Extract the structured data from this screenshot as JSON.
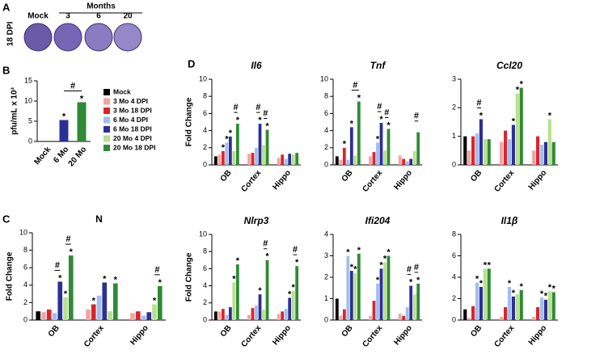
{
  "panel_a": {
    "panel": "A",
    "side_label": "18 DPI",
    "header": "Months",
    "columns": [
      "Mock",
      "3",
      "6",
      "20"
    ]
  },
  "chart_data": [
    {
      "type": "bar",
      "panel": "B",
      "y_label": "pfu/mL x 10³",
      "categories": [
        "Mock",
        "6 Mo",
        "20 Mo"
      ],
      "values": [
        0,
        5.3,
        9.7
      ],
      "colors": [
        "#000000",
        "#2c2f96",
        "#2f8a35"
      ],
      "markers": [
        null,
        "*",
        "*"
      ],
      "brackets": [
        {
          "categories": [
            1,
            2
          ],
          "label": "#"
        }
      ],
      "ylim": [
        0,
        15
      ],
      "yticks": [
        0,
        5,
        10,
        15
      ],
      "legend": [
        {
          "name": "Mock",
          "color": "#000000"
        },
        {
          "name": "3 Mo 4 DPI",
          "color": "#f4a3a3"
        },
        {
          "name": "3 Mo 18 DPI",
          "color": "#d7262b"
        },
        {
          "name": "6 Mo 4 DPI",
          "color": "#a3bdf0"
        },
        {
          "name": "6 Mo 18 DPI",
          "color": "#2c2f96"
        },
        {
          "name": "20 Mo 4 DPI",
          "color": "#b9e08e"
        },
        {
          "name": "20 Mo 18 DPI",
          "color": "#2f8a35"
        }
      ]
    },
    {
      "type": "bar",
      "panel": "C",
      "title": "N",
      "y_label": "Fold Change",
      "categories": [
        "OB",
        "Cortex",
        "Hippo"
      ],
      "ylim": [
        0,
        10
      ],
      "yticks": [
        0,
        2,
        4,
        6,
        8,
        10
      ],
      "series": [
        {
          "color": "#000000",
          "values": [
            1,
            null,
            null
          ]
        },
        {
          "color": "#f4a3a3",
          "values": [
            0.9,
            1.2,
            0.8
          ]
        },
        {
          "color": "#d7262b",
          "values": [
            1.2,
            1.8,
            1.0
          ],
          "markers": [
            null,
            "*",
            null
          ]
        },
        {
          "color": "#a3bdf0",
          "values": [
            0.8,
            2.8,
            0.5
          ]
        },
        {
          "color": "#2c2f96",
          "values": [
            4.4,
            4.3,
            0.9
          ],
          "markers": [
            "*",
            "*",
            null
          ]
        },
        {
          "color": "#b9e08e",
          "values": [
            2.6,
            1.0,
            1.8
          ],
          "markers": [
            "*",
            null,
            "*"
          ]
        },
        {
          "color": "#2f8a35",
          "values": [
            7.4,
            4.2,
            3.9
          ],
          "markers": [
            "*",
            "*",
            "*"
          ]
        }
      ],
      "brackets": [
        {
          "category": 0,
          "series": [
            3,
            4
          ],
          "label": "#"
        },
        {
          "category": 0,
          "series": [
            5,
            6
          ],
          "label": "#"
        },
        {
          "category": 2,
          "series": [
            5,
            6
          ],
          "label": "#"
        }
      ]
    },
    {
      "type": "bar",
      "panel": "D",
      "title": "Il6",
      "y_label": "Fold Change",
      "categories": [
        "OB",
        "Cortex",
        "Hippo"
      ],
      "ylim": [
        0,
        10
      ],
      "yticks": [
        0,
        2,
        4,
        6,
        8,
        10
      ],
      "series": [
        {
          "color": "#000000",
          "values": [
            1,
            null,
            null
          ]
        },
        {
          "color": "#f4a3a3",
          "values": [
            1.2,
            1.3,
            0.8
          ]
        },
        {
          "color": "#d7262b",
          "values": [
            1.6,
            1.4,
            1.2
          ],
          "markers": [
            "*",
            null,
            null
          ]
        },
        {
          "color": "#a3bdf0",
          "values": [
            2.6,
            2.0,
            0.7
          ],
          "markers": [
            "*",
            null,
            null
          ]
        },
        {
          "color": "#2c2f96",
          "values": [
            3.3,
            4.8,
            1.3
          ],
          "markers": [
            "*",
            "*",
            null
          ]
        },
        {
          "color": "#b9e08e",
          "values": [
            1.6,
            2.3,
            1.2
          ]
        },
        {
          "color": "#2f8a35",
          "values": [
            4.8,
            4.1,
            1.4
          ],
          "markers": [
            "*",
            "*",
            null
          ]
        }
      ],
      "brackets": [
        {
          "category": 0,
          "series": [
            5,
            6
          ],
          "label": "#"
        },
        {
          "category": 1,
          "series": [
            3,
            4
          ],
          "label": "#"
        },
        {
          "category": 1,
          "series": [
            5,
            6
          ],
          "label": "#"
        }
      ]
    },
    {
      "type": "bar",
      "title": "Tnf",
      "categories": [
        "OB",
        "Cortex",
        "Hippo"
      ],
      "ylim": [
        0,
        10
      ],
      "yticks": [
        0,
        2,
        4,
        6,
        8,
        10
      ],
      "series": [
        {
          "color": "#000000",
          "values": [
            1,
            null,
            null
          ]
        },
        {
          "color": "#f4a3a3",
          "values": [
            0.6,
            1.0,
            1.1
          ]
        },
        {
          "color": "#d7262b",
          "values": [
            2.0,
            1.5,
            0.7
          ],
          "markers": [
            "*",
            null,
            null
          ]
        },
        {
          "color": "#a3bdf0",
          "values": [
            0.6,
            2.6,
            0.4
          ],
          "markers": [
            null,
            "*",
            null
          ]
        },
        {
          "color": "#2c2f96",
          "values": [
            4.4,
            4.9,
            0.7
          ],
          "markers": [
            "*",
            "*",
            null
          ]
        },
        {
          "color": "#b9e08e",
          "values": [
            1.1,
            1.7,
            1.6
          ]
        },
        {
          "color": "#2f8a35",
          "values": [
            7.4,
            4.2,
            3.8
          ],
          "markers": [
            "*",
            "*",
            null
          ]
        }
      ],
      "brackets": [
        {
          "category": 0,
          "series": [
            4,
            6
          ],
          "label": "#"
        },
        {
          "category": 1,
          "series": [
            3,
            4
          ],
          "label": "#"
        },
        {
          "category": 1,
          "series": [
            5,
            6
          ],
          "label": "#"
        },
        {
          "category": 2,
          "series": [
            5,
            6
          ],
          "label": "#"
        }
      ]
    },
    {
      "type": "bar",
      "title": "Ccl20",
      "categories": [
        "OB",
        "Cortex",
        "Hippo"
      ],
      "ylim": [
        0,
        3
      ],
      "yticks": [
        0,
        1,
        2,
        3
      ],
      "series": [
        {
          "color": "#000000",
          "values": [
            1,
            null,
            null
          ]
        },
        {
          "color": "#f4a3a3",
          "values": [
            0.5,
            0.8,
            0.5
          ]
        },
        {
          "color": "#d7262b",
          "values": [
            1.0,
            1.2,
            1.0
          ]
        },
        {
          "color": "#a3bdf0",
          "values": [
            1.1,
            0.9,
            0.7
          ]
        },
        {
          "color": "#2c2f96",
          "values": [
            1.6,
            1.4,
            0.8
          ],
          "markers": [
            "*",
            "*",
            null
          ]
        },
        {
          "color": "#b9e08e",
          "values": [
            0.9,
            2.5,
            1.6
          ],
          "markers": [
            null,
            "*",
            "*"
          ]
        },
        {
          "color": "#2f8a35",
          "values": [
            0.9,
            2.7,
            0.8
          ],
          "markers": [
            null,
            "*",
            null
          ]
        }
      ],
      "brackets": [
        {
          "category": 0,
          "series": [
            3,
            4
          ],
          "label": "#"
        }
      ]
    },
    {
      "type": "bar",
      "title": "Nlrp3",
      "y_label": "Fold Change",
      "categories": [
        "OB",
        "Cortex",
        "Hippo"
      ],
      "ylim": [
        0,
        10
      ],
      "yticks": [
        0,
        2,
        4,
        6,
        8,
        10
      ],
      "series": [
        {
          "color": "#000000",
          "values": [
            1,
            null,
            null
          ]
        },
        {
          "color": "#f4a3a3",
          "values": [
            1.0,
            0.6,
            0.7
          ]
        },
        {
          "color": "#d7262b",
          "values": [
            1.3,
            1.4,
            1.0
          ]
        },
        {
          "color": "#a3bdf0",
          "values": [
            0.6,
            1.7,
            1.3
          ]
        },
        {
          "color": "#2c2f96",
          "values": [
            1.5,
            3.0,
            2.6
          ],
          "markers": [
            null,
            "*",
            "*"
          ]
        },
        {
          "color": "#b9e08e",
          "values": [
            4.4,
            1.2,
            3.4
          ],
          "markers": [
            "*",
            null,
            "*"
          ]
        },
        {
          "color": "#2f8a35",
          "values": [
            6.5,
            7.0,
            6.3
          ],
          "markers": [
            "*",
            "*",
            "*"
          ]
        }
      ],
      "brackets": [
        {
          "category": 1,
          "series": [
            5,
            6
          ],
          "label": "#"
        },
        {
          "category": 2,
          "series": [
            5,
            6
          ],
          "label": "#"
        }
      ]
    },
    {
      "type": "bar",
      "title": "Ifi204",
      "categories": [
        "OB",
        "Cortex",
        "Hippo"
      ],
      "ylim": [
        0,
        4
      ],
      "yticks": [
        0,
        1,
        2,
        3,
        4
      ],
      "series": [
        {
          "color": "#000000",
          "values": [
            1,
            null,
            null
          ]
        },
        {
          "color": "#f4a3a3",
          "values": [
            0.2,
            0.2,
            0.3
          ]
        },
        {
          "color": "#d7262b",
          "values": [
            0.5,
            0.9,
            0.2
          ]
        },
        {
          "color": "#a3bdf0",
          "values": [
            3.0,
            1.7,
            0.6
          ],
          "markers": [
            "*",
            "*",
            null
          ]
        },
        {
          "color": "#2c2f96",
          "values": [
            2.3,
            2.4,
            1.6
          ],
          "markers": [
            "*",
            "*",
            "*"
          ]
        },
        {
          "color": "#b9e08e",
          "values": [
            2.2,
            2.7,
            1.2
          ],
          "markers": [
            "*",
            "*",
            null
          ]
        },
        {
          "color": "#2f8a35",
          "values": [
            3.1,
            3.0,
            1.7
          ],
          "markers": [
            "*",
            "*",
            "*"
          ]
        }
      ],
      "brackets": [
        {
          "category": 2,
          "series": [
            3,
            4
          ],
          "label": "#"
        },
        {
          "category": 2,
          "series": [
            5,
            6
          ],
          "label": "#"
        }
      ]
    },
    {
      "type": "bar",
      "title": "Il1β",
      "categories": [
        "OB",
        "Cortex",
        "Hippo"
      ],
      "ylim": [
        0,
        8
      ],
      "yticks": [
        0,
        2,
        4,
        6,
        8
      ],
      "series": [
        {
          "color": "#000000",
          "values": [
            1,
            null,
            null
          ]
        },
        {
          "color": "#f4a3a3",
          "values": [
            0.2,
            0.3,
            0.3
          ]
        },
        {
          "color": "#d7262b",
          "values": [
            1.3,
            1.2,
            1.2
          ]
        },
        {
          "color": "#a3bdf0",
          "values": [
            3.5,
            3.1,
            2.1
          ],
          "markers": [
            "*",
            "*",
            "*"
          ]
        },
        {
          "color": "#2c2f96",
          "values": [
            3.1,
            2.2,
            1.9
          ],
          "markers": [
            "*",
            "*",
            "*"
          ]
        },
        {
          "color": "#b9e08e",
          "values": [
            4.8,
            2.4,
            2.7
          ],
          "markers": [
            "*",
            null,
            "*"
          ]
        },
        {
          "color": "#2f8a35",
          "values": [
            4.8,
            2.8,
            2.6
          ],
          "markers": [
            "*",
            "*",
            "*"
          ]
        }
      ]
    }
  ]
}
